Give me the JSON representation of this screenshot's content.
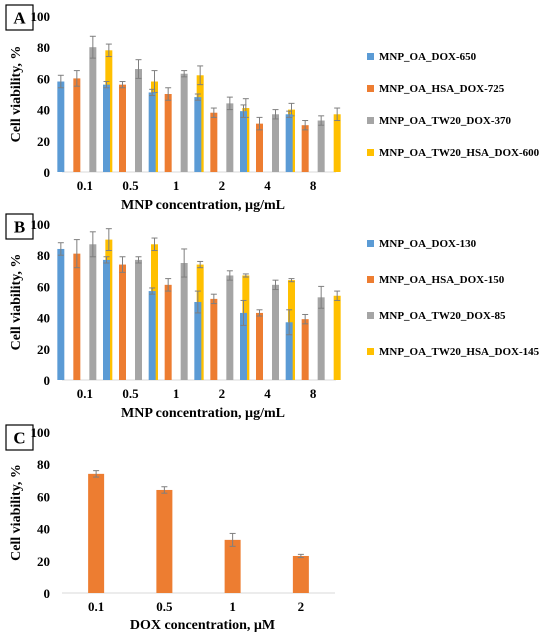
{
  "colors": {
    "blue": "#5b9bd5",
    "orange": "#ed7d31",
    "gray": "#a5a5a5",
    "yellow": "#ffc000",
    "error_bar": "#7f7f7f"
  },
  "chart_data": [
    {
      "panel": "A",
      "type": "bar",
      "xlabel": "MNP concentration, µg/mL",
      "ylabel": "Cell viability, %",
      "ylim": [
        0,
        100
      ],
      "yticks": [
        0,
        20,
        40,
        60,
        80,
        100
      ],
      "categories": [
        "0.1",
        "0.5",
        "1",
        "2",
        "4",
        "8"
      ],
      "legend_position": "right",
      "series": [
        {
          "name": "MNP_OA_DOX-650",
          "color": "#5b9bd5",
          "values": [
            58,
            56,
            51,
            48,
            39,
            37
          ],
          "errors": [
            4,
            2,
            2,
            2,
            4,
            2
          ]
        },
        {
          "name": "MNP_OA_HSA_DOX-725",
          "color": "#ed7d31",
          "values": [
            60,
            56,
            50,
            38,
            31,
            30
          ],
          "errors": [
            5,
            2,
            4,
            3,
            4,
            3
          ]
        },
        {
          "name": "MNP_OA_TW20_DOX-370",
          "color": "#a5a5a5",
          "values": [
            80,
            66,
            63,
            44,
            37,
            33
          ],
          "errors": [
            7,
            6,
            2,
            4,
            3,
            3
          ]
        },
        {
          "name": "MNP_OA_TW20_HSA_DOX-600",
          "color": "#ffc000",
          "values": [
            78,
            58,
            62,
            41,
            40,
            37
          ],
          "errors": [
            4,
            7,
            6,
            6,
            4,
            4
          ]
        }
      ]
    },
    {
      "panel": "B",
      "type": "bar",
      "xlabel": "MNP concentration, µg/mL",
      "ylabel": "Cell viability, %",
      "ylim": [
        0,
        100
      ],
      "yticks": [
        0,
        20,
        40,
        60,
        80,
        100
      ],
      "categories": [
        "0.1",
        "0.5",
        "1",
        "2",
        "4",
        "8"
      ],
      "legend_position": "right",
      "series": [
        {
          "name": "MNP_OA_DOX-130",
          "color": "#5b9bd5",
          "values": [
            84,
            77,
            57,
            50,
            43,
            37
          ],
          "errors": [
            4,
            2,
            2,
            7,
            8,
            8
          ]
        },
        {
          "name": "MNP_OA_HSA_DOX-150",
          "color": "#ed7d31",
          "values": [
            81,
            74,
            61,
            52,
            43,
            39
          ],
          "errors": [
            9,
            5,
            4,
            3,
            2,
            3
          ]
        },
        {
          "name": "MNP_OA_TW20_DOX-85",
          "color": "#a5a5a5",
          "values": [
            87,
            77,
            75,
            67,
            61,
            53
          ],
          "errors": [
            8,
            2,
            9,
            3,
            3,
            7
          ]
        },
        {
          "name": "MNP_OA_TW20_HSA_DOX-145",
          "color": "#ffc000",
          "values": [
            90,
            87,
            74,
            67,
            64,
            54
          ],
          "errors": [
            7,
            4,
            2,
            1,
            1,
            3
          ]
        }
      ]
    },
    {
      "panel": "C",
      "type": "bar",
      "xlabel": "DOX concentration, µM",
      "ylabel": "Cell viability, %",
      "ylim": [
        0,
        100
      ],
      "yticks": [
        0,
        20,
        40,
        60,
        80,
        100
      ],
      "categories": [
        "0.1",
        "0.5",
        "1",
        "2"
      ],
      "series": [
        {
          "name": "",
          "color": "#ed7d31",
          "values": [
            74,
            64,
            33,
            23
          ],
          "errors": [
            2,
            2,
            4,
            1
          ]
        }
      ]
    }
  ]
}
